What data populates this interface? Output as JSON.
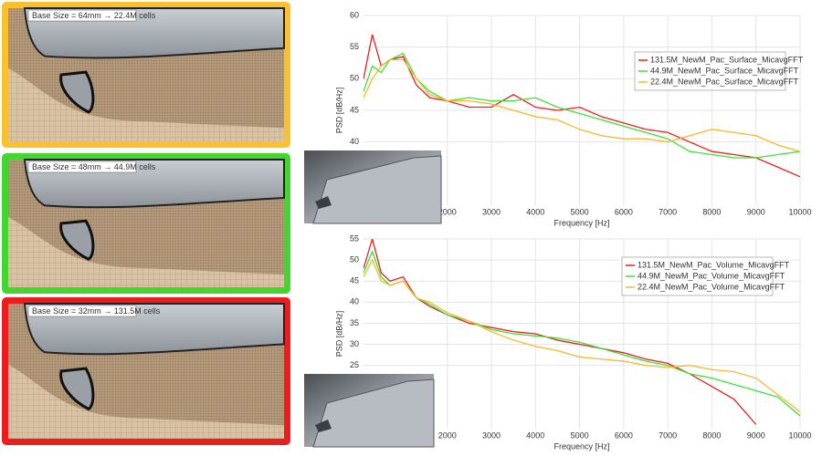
{
  "mesh_panels": [
    {
      "label": "Base Size = 64mm → 22.4M cells",
      "color": "#fbc02d"
    },
    {
      "label": "Base Size = 48mm → 44.9M cells",
      "color": "#43d62f"
    },
    {
      "label": "Base Size = 32mm → 131.5M cells",
      "color": "#ee1c1c"
    }
  ],
  "chart_data": [
    {
      "type": "line",
      "xlabel": "Frequency [Hz]",
      "ylabel": "PSD [dB/Hz]",
      "x": [
        100,
        300,
        500,
        700,
        1000,
        1300,
        1600,
        2000,
        2500,
        3000,
        3500,
        4000,
        4500,
        5000,
        5500,
        6000,
        6500,
        7000,
        7500,
        8000,
        8500,
        9000,
        9500,
        10000
      ],
      "xlim": [
        100,
        10000
      ],
      "xticks": [
        2000,
        3000,
        4000,
        5000,
        6000,
        7000,
        8000,
        9000,
        10000
      ],
      "ylim": [
        30,
        60
      ],
      "yticks": [
        40,
        45,
        50,
        55,
        60
      ],
      "grid": true,
      "legend": "upper right",
      "series": [
        {
          "name": "131.5M_NewM_Pac_Surface_MicavgFFT",
          "color": "#e8201e",
          "values": [
            50,
            57,
            52,
            53,
            53.5,
            49,
            47,
            46.5,
            45.5,
            45.5,
            47.5,
            45.5,
            45,
            45.5,
            44,
            43,
            42,
            41.5,
            40,
            38.5,
            38,
            37.5,
            36,
            34.5
          ]
        },
        {
          "name": "44.9M_NewM_Pac_Surface_MicavgFFT",
          "color": "#3fe03a",
          "values": [
            48,
            52,
            51,
            53,
            54,
            50,
            48,
            46.5,
            47,
            46.5,
            46.5,
            47,
            45.5,
            44.5,
            43.5,
            42.5,
            41.5,
            40.5,
            38.5,
            38,
            37.5,
            37.5,
            38,
            38.5
          ]
        },
        {
          "name": "22.4M_NewM_Pac_Surface_MicavgFFT",
          "color": "#f5b82a",
          "values": [
            47,
            50,
            52,
            53,
            53,
            50,
            47.5,
            46.5,
            46.5,
            46,
            45,
            44,
            43.5,
            42,
            41,
            40.5,
            40.5,
            40,
            41,
            42,
            41.5,
            41,
            39.5,
            38.5
          ]
        }
      ]
    },
    {
      "type": "line",
      "xlabel": "Frequency [Hz]",
      "ylabel": "PSD [dB/Hz]",
      "x": [
        100,
        300,
        500,
        700,
        1000,
        1300,
        1600,
        2000,
        2500,
        3000,
        3500,
        4000,
        4500,
        5000,
        5500,
        6000,
        6500,
        7000,
        7500,
        8000,
        8500,
        9000,
        9500,
        10000
      ],
      "xlim": [
        100,
        10000
      ],
      "xticks": [
        2000,
        3000,
        4000,
        5000,
        6000,
        7000,
        8000,
        9000,
        10000
      ],
      "ylim": [
        10,
        55
      ],
      "yticks": [
        25,
        30,
        35,
        40,
        45,
        50,
        55
      ],
      "grid": true,
      "legend": "upper right",
      "series": [
        {
          "name": "131.5M_NewM_Pac_Volume_MicavgFFT",
          "color": "#e8201e",
          "values": [
            48,
            55,
            47,
            45,
            46,
            41,
            39,
            37,
            35,
            34,
            33,
            32.5,
            31,
            30,
            29,
            28,
            26.5,
            25.5,
            23,
            20,
            17,
            11,
            null,
            null
          ]
        },
        {
          "name": "44.9M_NewM_Pac_Volume_MicavgFFT",
          "color": "#3fe03a",
          "values": [
            47,
            52,
            46,
            44,
            45,
            41,
            39.5,
            37,
            35.5,
            33.5,
            32.5,
            32,
            31.5,
            30.5,
            29,
            27.5,
            26,
            25,
            23,
            22,
            20.5,
            19,
            17.5,
            13
          ]
        },
        {
          "name": "22.4M_NewM_Pac_Volume_MicavgFFT",
          "color": "#f5b82a",
          "values": [
            46,
            50,
            45,
            44,
            45,
            41,
            40,
            37.5,
            35.5,
            33,
            31,
            29.5,
            28.5,
            27,
            26.5,
            26,
            25,
            24.5,
            25,
            24,
            23.5,
            22,
            18,
            14
          ]
        }
      ]
    }
  ]
}
